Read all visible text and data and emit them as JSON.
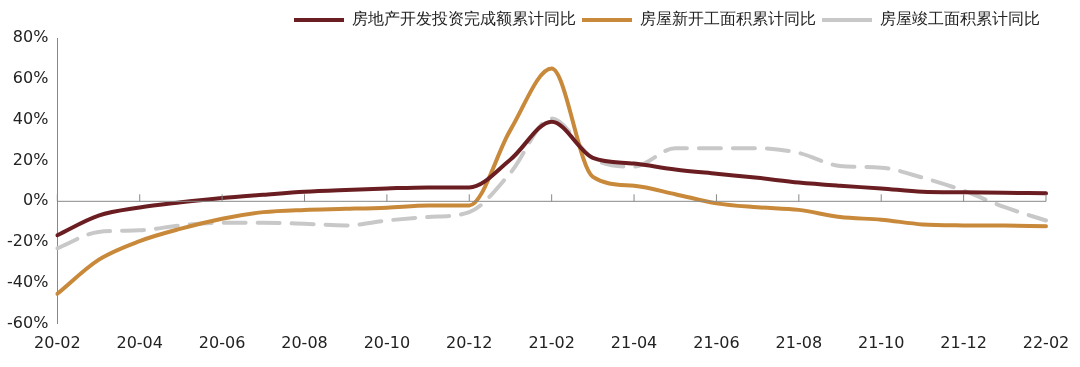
{
  "chart_data": {
    "type": "line",
    "categories": [
      "20-02",
      null,
      "20-04",
      null,
      "20-06",
      null,
      "20-08",
      null,
      "20-10",
      null,
      "20-12",
      null,
      "21-02",
      null,
      "21-04",
      null,
      "21-06",
      null,
      "21-08",
      null,
      "21-10",
      null,
      "21-12",
      null,
      "22-02"
    ],
    "series": [
      {
        "name": "房地产开发投资完成额累计同比",
        "color": "#6b1e22",
        "values": [
          -16.6,
          -7,
          -3,
          -0.5,
          1.6,
          3.2,
          4.7,
          5.6,
          6.3,
          6.8,
          6.8,
          20.5,
          39,
          21.3,
          18.5,
          15.6,
          13.5,
          11.5,
          9.2,
          7.6,
          6.3,
          4.7,
          4.4,
          4.2,
          3.9
        ]
      },
      {
        "name": "房屋新开工面积累计同比",
        "color": "#c8893a",
        "values": [
          -45.3,
          -28.7,
          -19.5,
          -13.4,
          -8.5,
          -5.3,
          -4.2,
          -3.7,
          -3.1,
          -2.1,
          -2,
          35,
          65,
          12,
          7.6,
          3.5,
          -1,
          -2.9,
          -4.2,
          -7.7,
          -9,
          -11.3,
          -11.8,
          -11.9,
          -12.2
        ]
      },
      {
        "name": "房屋竣工面积累计同比",
        "color": "#c8c8c8",
        "line_style": "dashed",
        "values": [
          -23,
          -15,
          -14.2,
          -11.8,
          -10.5,
          -10.5,
          -11,
          -11.8,
          -9.4,
          -7.7,
          -5.3,
          14,
          40.6,
          21,
          17,
          26,
          26,
          26,
          23.7,
          17.3,
          16.5,
          11.6,
          5.2,
          -2.9,
          -9.4
        ]
      }
    ],
    "ylim": [
      -60,
      80
    ],
    "yticks": [
      {
        "value": -60,
        "label": "-60%"
      },
      {
        "value": -40,
        "label": "-40%"
      },
      {
        "value": -20,
        "label": "-20%"
      },
      {
        "value": 0,
        "label": "0%"
      },
      {
        "value": 20,
        "label": "20%"
      },
      {
        "value": 40,
        "label": "40%"
      },
      {
        "value": 60,
        "label": "60%"
      },
      {
        "value": 80,
        "label": "80%"
      }
    ],
    "legend": "top",
    "marker": "none",
    "line_style": "solid"
  }
}
